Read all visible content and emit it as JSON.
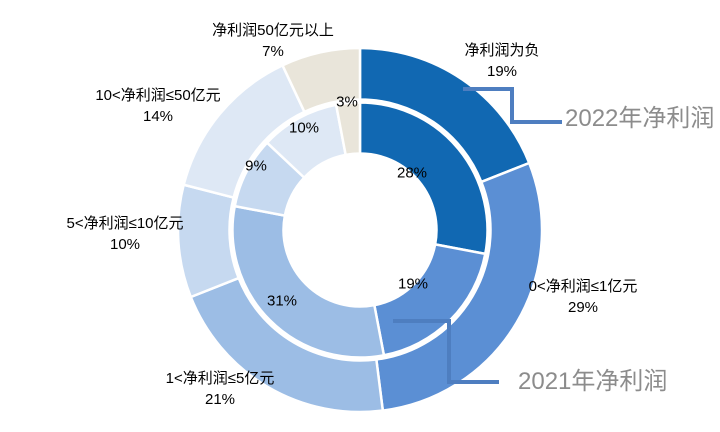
{
  "chart_data": {
    "type": "donut",
    "title": "",
    "categories": [
      "净利润为负",
      "0<净利润≤1亿元",
      "1<净利润≤5亿元",
      "5<净利润≤10亿元",
      "10<净利润≤50亿元",
      "净利润50亿元以上"
    ],
    "series": [
      {
        "name": "2022年净利润",
        "ring": "outer",
        "unit": "%",
        "values": [
          19,
          29,
          21,
          10,
          14,
          7
        ]
      },
      {
        "name": "2021年净利润",
        "ring": "inner",
        "unit": "%",
        "values": [
          28,
          19,
          31,
          9,
          10,
          3
        ]
      }
    ],
    "segment_colors": [
      "#1168B2",
      "#5B8FD4",
      "#9CBDE5",
      "#C6D9F0",
      "#DEE8F5",
      "#E9E5DA"
    ],
    "start_angle_deg": 0,
    "direction": "clockwise",
    "legend": "none",
    "grid": "off",
    "background_color": "#FFFFFF",
    "segment_border_color": "#FFFFFF",
    "category_label_color": "#000000",
    "inner_value_label_color": "#000000",
    "connector_color": "#4E7EC0",
    "series_label_color": "#8C8C8C"
  }
}
